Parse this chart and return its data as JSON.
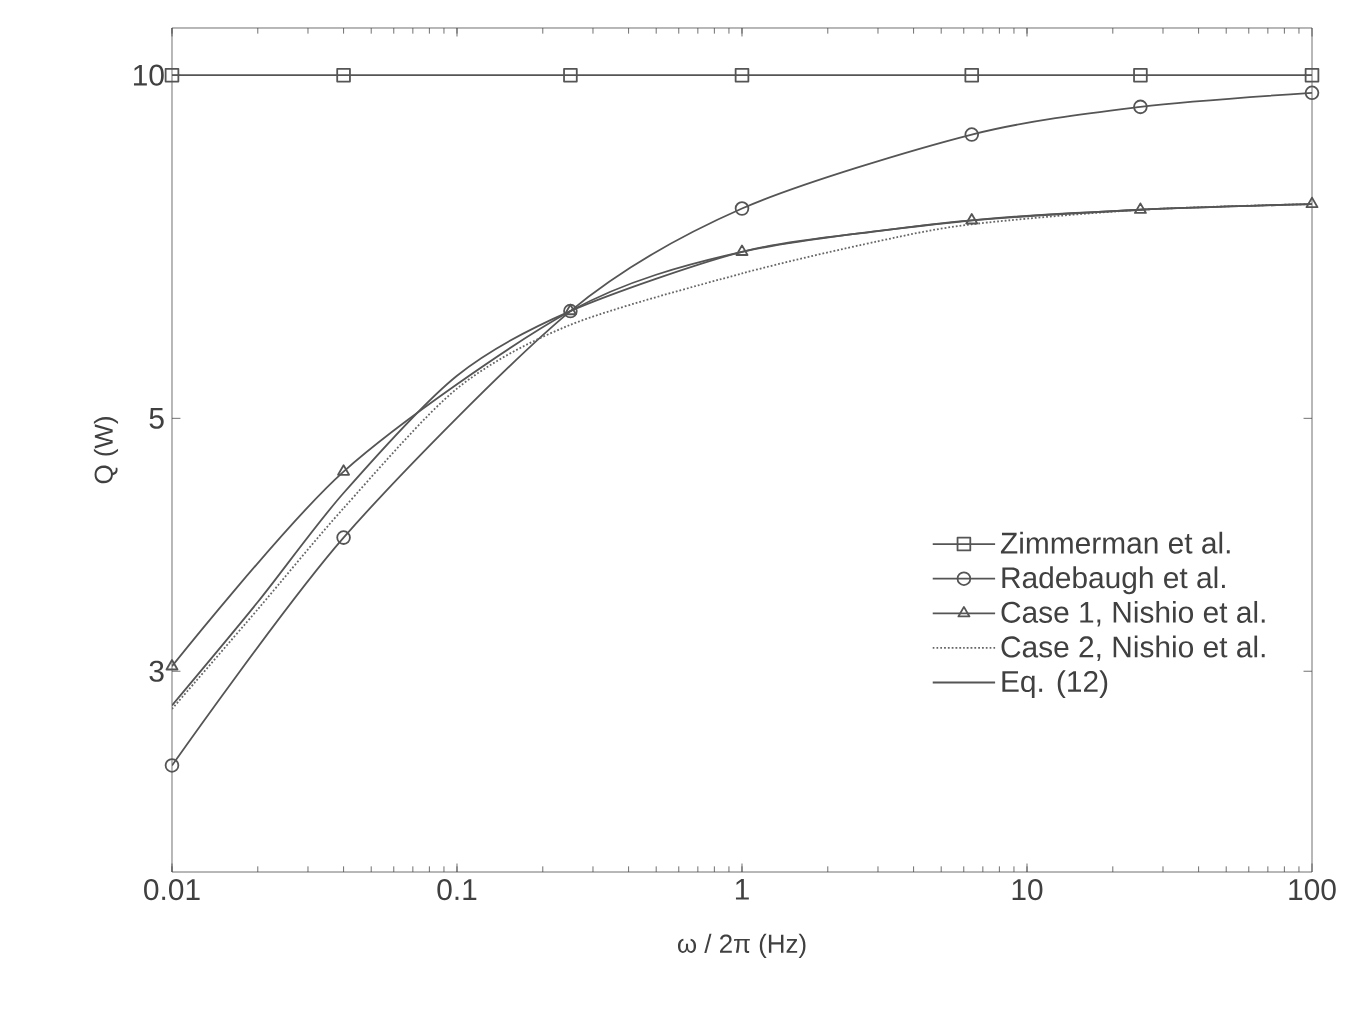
{
  "chart_data": {
    "type": "line",
    "xlabel": "ω / 2π (Hz)",
    "ylabel": "Q (W)",
    "log": "xy",
    "xlim": [
      0.01,
      100
    ],
    "ylim": [
      2,
      11
    ],
    "xticks": [
      0.01,
      0.1,
      1,
      10,
      100
    ],
    "yticks": [
      3,
      5,
      10
    ],
    "grid": false,
    "legend": "right",
    "series": [
      {
        "name": "Zimmerman et al.",
        "color": "#555555",
        "marker": "square",
        "line_style": "solid",
        "x": [
          0.01,
          0.04,
          0.25,
          1,
          6.4,
          25,
          100
        ],
        "values": [
          10,
          10,
          10,
          10,
          10,
          10,
          10
        ]
      },
      {
        "name": "Radebaugh et al.",
        "color": "#555555",
        "marker": "circle",
        "line_style": "solid",
        "x": [
          0.01,
          0.04,
          0.25,
          1,
          6.4,
          25,
          100
        ],
        "values": [
          2.48,
          3.93,
          6.21,
          7.64,
          8.87,
          9.38,
          9.65
        ]
      },
      {
        "name": "Case 1, Nishio et al.",
        "color": "#555555",
        "marker": "triangle",
        "line_style": "solid",
        "x": [
          0.01,
          0.04,
          0.25,
          1,
          6.4,
          25,
          100
        ],
        "values": [
          3.03,
          4.49,
          6.21,
          7.0,
          7.46,
          7.62,
          7.71
        ]
      },
      {
        "name": "Case 2, Nishio et al.",
        "color": "#666666",
        "marker": "none",
        "line_style": "dotted",
        "x": [
          0.01,
          0.02,
          0.04,
          0.1,
          0.25,
          1,
          3,
          6.4,
          25,
          100
        ],
        "values": [
          2.78,
          3.4,
          4.17,
          5.31,
          6.04,
          6.7,
          7.15,
          7.4,
          7.62,
          7.71
        ]
      },
      {
        "name": "Eq. (12)",
        "color": "#555555",
        "marker": "none",
        "line_style": "solid",
        "x": [
          0.01,
          0.02,
          0.04,
          0.1,
          0.25,
          1,
          3,
          6.4,
          25,
          100
        ],
        "values": [
          2.8,
          3.45,
          4.3,
          5.45,
          6.21,
          7.0,
          7.3,
          7.46,
          7.62,
          7.71
        ]
      }
    ]
  }
}
